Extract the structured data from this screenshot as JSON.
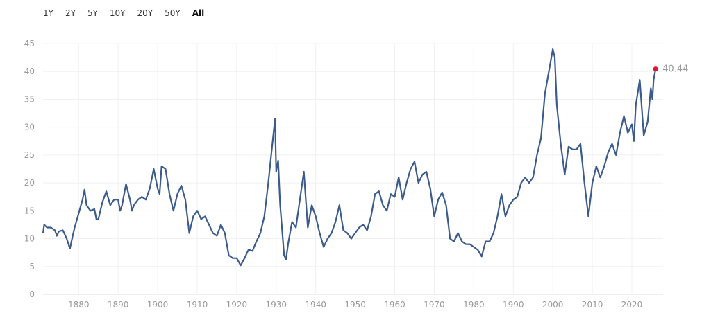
{
  "range_buttons": [
    {
      "label": "1Y"
    },
    {
      "label": "2Y"
    },
    {
      "label": "5Y"
    },
    {
      "label": "10Y"
    },
    {
      "label": "20Y"
    },
    {
      "label": "50Y"
    },
    {
      "label": "All",
      "active": true
    }
  ],
  "chart_data": {
    "type": "line",
    "xlim": [
      1871,
      2026.5
    ],
    "ylim": [
      0,
      45
    ],
    "yticks": [
      0,
      5,
      10,
      15,
      20,
      25,
      30,
      35,
      40,
      45
    ],
    "xticks": [
      1880,
      1890,
      1900,
      1910,
      1920,
      1930,
      1940,
      1950,
      1960,
      1970,
      1980,
      1990,
      2000,
      2010,
      2020
    ],
    "grid": true,
    "line_color": "#3b5b8c",
    "marker_color": "#e8102a",
    "last_value_label": "40.44",
    "series": [
      {
        "x": [
          1871,
          1871.3,
          1872,
          1873,
          1874,
          1874.5,
          1875,
          1876,
          1877,
          1877.8,
          1878.5,
          1879,
          1880,
          1881,
          1881.5,
          1882,
          1883,
          1884,
          1884.5,
          1885,
          1886,
          1887,
          1888,
          1889,
          1890,
          1890.5,
          1891,
          1892,
          1893,
          1893.5,
          1894,
          1895,
          1896,
          1897,
          1898,
          1899,
          1900,
          1900.5,
          1901,
          1902,
          1903,
          1904,
          1905,
          1906,
          1907,
          1908,
          1909,
          1910,
          1911,
          1912,
          1913,
          1914,
          1915,
          1916,
          1917,
          1918,
          1919,
          1920,
          1921,
          1922,
          1923,
          1924,
          1925,
          1926,
          1927,
          1928,
          1929.7,
          1930,
          1930.5,
          1931,
          1932,
          1932.5,
          1933,
          1934,
          1935,
          1936,
          1937,
          1938,
          1939,
          1940,
          1941,
          1942,
          1943,
          1944,
          1945,
          1946,
          1947,
          1948,
          1949,
          1950,
          1951,
          1952,
          1953,
          1954,
          1955,
          1956,
          1957,
          1958,
          1959,
          1960,
          1961,
          1962,
          1963,
          1964,
          1965,
          1966,
          1967,
          1968,
          1969,
          1970,
          1971,
          1972,
          1973,
          1974,
          1975,
          1976,
          1977,
          1978,
          1979,
          1980,
          1981,
          1982,
          1983,
          1984,
          1985,
          1986,
          1987,
          1988,
          1989,
          1990,
          1991,
          1992,
          1993,
          1994,
          1995,
          1996,
          1997,
          1998,
          1999,
          2000,
          2000.5,
          2001,
          2002,
          2003,
          2004,
          2005,
          2006,
          2007,
          2008,
          2009,
          2010,
          2011,
          2012,
          2013,
          2014,
          2015,
          2016,
          2017,
          2018,
          2019,
          2020,
          2020.5,
          2021,
          2022,
          2023,
          2024,
          2024.8,
          2025.2,
          2025.5,
          2026
        ],
        "values": [
          11,
          12.5,
          12,
          12,
          11.5,
          10.5,
          11.3,
          11.5,
          10,
          8.2,
          10.5,
          12,
          14.5,
          17,
          18.8,
          16,
          15,
          15.3,
          13.5,
          13.5,
          16.5,
          18.5,
          16,
          17,
          17,
          15,
          16,
          19.8,
          17,
          15,
          16,
          17,
          17.5,
          17,
          19,
          22.5,
          19,
          18,
          23,
          22.5,
          18,
          15,
          18,
          19.5,
          17,
          11,
          14,
          15,
          13.5,
          14,
          12.5,
          11,
          10.5,
          12.5,
          11,
          7,
          6.5,
          6.5,
          5.2,
          6.5,
          8,
          7.8,
          9.5,
          11,
          14,
          20,
          31.5,
          22,
          24,
          16,
          7,
          6.3,
          9,
          13,
          12,
          17,
          22,
          12,
          16,
          14,
          11,
          8.5,
          10,
          11,
          13,
          16,
          11.5,
          11,
          10,
          11,
          12,
          12.5,
          11.5,
          14,
          18,
          18.5,
          16,
          15,
          18,
          17.5,
          21,
          17,
          20,
          22.5,
          23.8,
          20,
          21.5,
          22,
          19,
          14,
          17,
          18.3,
          16,
          10,
          9.5,
          11,
          9.5,
          9,
          9,
          8.5,
          8,
          6.8,
          9.5,
          9.5,
          11,
          14,
          18,
          14,
          16,
          17,
          17.5,
          20,
          21,
          20,
          21,
          25,
          28,
          36,
          40,
          44,
          42.5,
          34,
          27,
          21.5,
          26.5,
          26,
          26,
          27,
          20,
          14,
          20,
          23,
          21,
          23,
          25.5,
          27,
          25,
          29,
          32,
          29,
          30.5,
          27.5,
          34,
          38.5,
          28.5,
          31,
          37,
          35,
          38.5,
          40.44
        ]
      }
    ]
  }
}
